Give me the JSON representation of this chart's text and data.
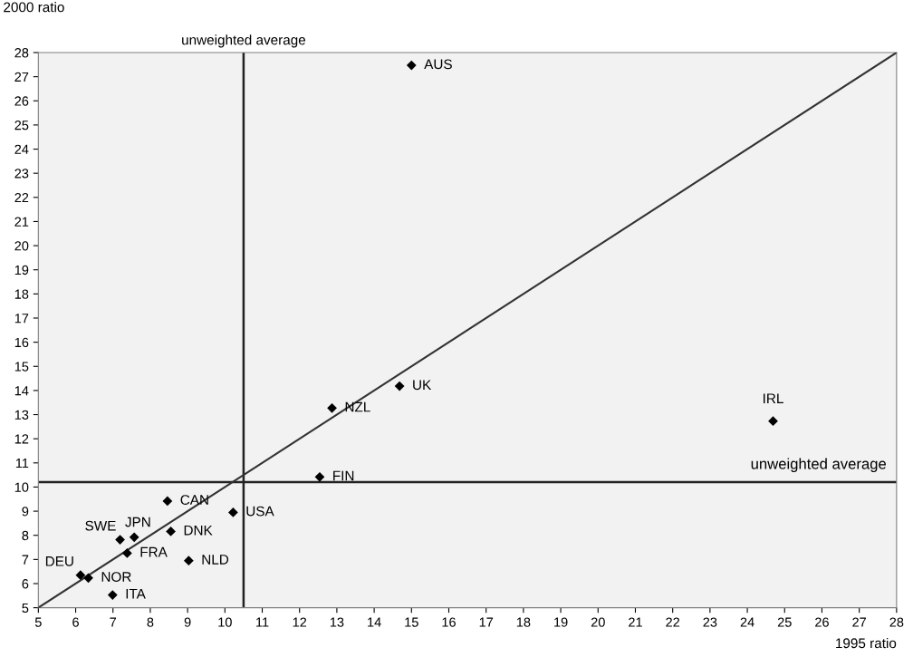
{
  "chart_data": {
    "type": "scatter",
    "xlabel": "1995 ratio",
    "ylabel": "2000 ratio",
    "x": [
      15.0,
      14.68,
      12.87,
      24.69,
      12.54,
      8.46,
      10.22,
      7.19,
      7.57,
      8.55,
      7.38,
      9.03,
      6.13,
      6.34,
      6.99
    ],
    "series": [
      {
        "color": "#000000",
        "marker": "diamond",
        "values": [
          27.47,
          14.18,
          13.27,
          12.73,
          10.42,
          9.42,
          8.95,
          7.82,
          7.92,
          8.16,
          7.26,
          6.95,
          6.35,
          6.23,
          5.53
        ]
      },
      {
        "type": "line",
        "color": "#333333",
        "x": [
          5,
          28
        ],
        "values": [
          5,
          28
        ]
      }
    ],
    "annotations": [
      {
        "text": "AUS",
        "x": 15.0,
        "y": 27.47
      },
      {
        "text": "UK",
        "x": 14.68,
        "y": 14.18
      },
      {
        "text": "NZL",
        "x": 12.87,
        "y": 13.27
      },
      {
        "text": "IRL",
        "x": 24.69,
        "y": 12.73
      },
      {
        "text": "FIN",
        "x": 12.54,
        "y": 10.42
      },
      {
        "text": "CAN",
        "x": 8.46,
        "y": 9.42
      },
      {
        "text": "USA",
        "x": 10.22,
        "y": 8.95
      },
      {
        "text": "SWE",
        "x": 7.19,
        "y": 7.82
      },
      {
        "text": "JPN",
        "x": 7.57,
        "y": 7.92
      },
      {
        "text": "DNK",
        "x": 8.55,
        "y": 8.16
      },
      {
        "text": "FRA",
        "x": 7.38,
        "y": 7.26
      },
      {
        "text": "NLD",
        "x": 9.03,
        "y": 6.95
      },
      {
        "text": "DEU",
        "x": 6.13,
        "y": 6.35
      },
      {
        "text": "NOR",
        "x": 6.34,
        "y": 6.23
      },
      {
        "text": "ITA",
        "x": 6.99,
        "y": 5.53
      }
    ],
    "ref_lines": [
      {
        "axis": "x",
        "value": 10.5,
        "label": "unweighted average",
        "color": "#222222"
      },
      {
        "axis": "y",
        "value": 10.2,
        "label": "unweighted average",
        "color": "#222222"
      }
    ],
    "xlim": [
      5,
      28
    ],
    "ylim": [
      5,
      28
    ],
    "xticks": [
      5,
      6,
      7,
      8,
      9,
      10,
      11,
      12,
      13,
      14,
      15,
      16,
      17,
      18,
      19,
      20,
      21,
      22,
      23,
      24,
      25,
      26,
      27,
      28
    ],
    "yticks": [
      5,
      6,
      7,
      8,
      9,
      10,
      11,
      12,
      13,
      14,
      15,
      16,
      17,
      18,
      19,
      20,
      21,
      22,
      23,
      24,
      25,
      26,
      27,
      28
    ],
    "grid": false,
    "legend": false
  }
}
